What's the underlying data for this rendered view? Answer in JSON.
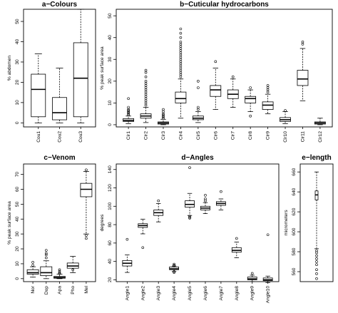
{
  "chart_data": [
    {
      "id": "colours",
      "type": "boxplot",
      "title": "a−Colours",
      "ylabel": "% abdomen",
      "ylim": [
        -2,
        56
      ],
      "yticks": [
        0,
        10,
        20,
        30,
        40,
        50
      ],
      "categories": [
        "Cou1",
        "Cou2",
        "Cou3"
      ],
      "boxes": [
        {
          "min": 0,
          "q1": 3,
          "median": 16.5,
          "q3": 24,
          "max": 34,
          "outliers": []
        },
        {
          "min": 0,
          "q1": 1.5,
          "median": 5,
          "q3": 12.5,
          "max": 27,
          "outliers": []
        },
        {
          "min": 0,
          "q1": 3,
          "median": 22,
          "q3": 39.5,
          "max": 56,
          "outliers": []
        }
      ]
    },
    {
      "id": "cuticular-hydrocarbons",
      "type": "boxplot",
      "title": "b−Cuticular hydrocarbons",
      "ylabel": "% peak surface area",
      "ylim": [
        -1,
        53
      ],
      "yticks": [
        0,
        10,
        20,
        30,
        40,
        50
      ],
      "categories": [
        "Cir1",
        "Cir2",
        "Cir3",
        "Cir4",
        "Cir5",
        "Cir6",
        "Cir7",
        "Cir8",
        "Cir9",
        "Cir10",
        "Cir11",
        "Cir12"
      ],
      "boxes": [
        {
          "min": 0.5,
          "q1": 1.5,
          "median": 2,
          "q3": 2.8,
          "max": 4,
          "outliers": [
            4.5,
            5,
            5.5,
            6,
            6.5,
            7,
            8,
            12
          ]
        },
        {
          "min": 1,
          "q1": 3,
          "median": 4,
          "q3": 5,
          "max": 8,
          "outliers": [
            9,
            10,
            11,
            12,
            13,
            14,
            15,
            16,
            17,
            18,
            19,
            20,
            22,
            24,
            25
          ]
        },
        {
          "min": 0,
          "q1": 0.3,
          "median": 0.8,
          "q3": 1.3,
          "max": 2.5,
          "outliers": [
            3,
            3.5,
            4,
            4.5,
            5,
            6,
            7
          ]
        },
        {
          "min": 3,
          "q1": 10,
          "median": 12,
          "q3": 15,
          "max": 21,
          "outliers": [
            22,
            23,
            24,
            25,
            26,
            27,
            28,
            29,
            30,
            31,
            32,
            33,
            34,
            35,
            36,
            37,
            38,
            40,
            42,
            44
          ]
        },
        {
          "min": 1,
          "q1": 2.3,
          "median": 3,
          "q3": 4,
          "max": 6,
          "outliers": [
            7,
            8,
            17,
            20
          ]
        },
        {
          "min": 7,
          "q1": 13,
          "median": 16,
          "q3": 18,
          "max": 26,
          "outliers": [
            29
          ]
        },
        {
          "min": 8,
          "q1": 12,
          "median": 14,
          "q3": 16,
          "max": 21,
          "outliers": [
            22
          ]
        },
        {
          "min": 6,
          "q1": 10,
          "median": 12,
          "q3": 13,
          "max": 16,
          "outliers": [
            17,
            4
          ]
        },
        {
          "min": 5,
          "q1": 7,
          "median": 9,
          "q3": 10.5,
          "max": 14,
          "outliers": [
            15,
            16,
            17,
            18
          ]
        },
        {
          "min": 0.5,
          "q1": 1.5,
          "median": 2.3,
          "q3": 3.3,
          "max": 6,
          "outliers": [
            6.5
          ]
        },
        {
          "min": 11,
          "q1": 18,
          "median": 21,
          "q3": 25,
          "max": 35,
          "outliers": [
            37,
            38
          ]
        },
        {
          "min": 0,
          "q1": 0.3,
          "median": 0.8,
          "q3": 1.3,
          "max": 3,
          "outliers": []
        }
      ]
    },
    {
      "id": "venom",
      "type": "boxplot",
      "title": "c−Venom",
      "ylabel": "% peak surface area",
      "ylim": [
        -2,
        77
      ],
      "yticks": [
        0,
        10,
        20,
        30,
        40,
        50,
        60,
        70
      ],
      "categories": [
        "Nor",
        "Dop",
        "Apa",
        "Pho",
        "Mel"
      ],
      "boxes": [
        {
          "min": 1,
          "q1": 3,
          "median": 4,
          "q3": 6,
          "max": 8,
          "outliers": [
            9,
            11
          ]
        },
        {
          "min": 0,
          "q1": 2,
          "median": 4,
          "q3": 8,
          "max": 12,
          "outliers": [
            14,
            16,
            17,
            19
          ]
        },
        {
          "min": 0,
          "q1": 0.3,
          "median": 0.8,
          "q3": 1.5,
          "max": 3,
          "outliers": [
            3.5,
            4,
            5,
            6
          ]
        },
        {
          "min": 4,
          "q1": 7,
          "median": 8.5,
          "q3": 10.5,
          "max": 15,
          "outliers": [
            6
          ]
        },
        {
          "min": 30,
          "q1": 55,
          "median": 60,
          "q3": 64,
          "max": 72,
          "outliers": [
            27,
            29,
            73
          ]
        }
      ]
    },
    {
      "id": "angles",
      "type": "boxplot",
      "title": "d−Angles",
      "ylabel": "degrees",
      "ylim": [
        18,
        146
      ],
      "yticks": [
        20,
        40,
        60,
        80,
        100,
        120,
        140
      ],
      "categories": [
        "Angle1",
        "Angle2",
        "Angle3",
        "Angle4",
        "Angle5",
        "Angle6",
        "Angle7",
        "Angle8",
        "Angle9",
        "Angle10"
      ],
      "boxes": [
        {
          "min": 28,
          "q1": 35,
          "median": 38,
          "q3": 41,
          "max": 47,
          "outliers": [
            64
          ]
        },
        {
          "min": 70,
          "q1": 77,
          "median": 79,
          "q3": 81,
          "max": 86,
          "outliers": [
            55
          ]
        },
        {
          "min": 83,
          "q1": 90,
          "median": 93,
          "q3": 96,
          "max": 103,
          "outliers": [
            106
          ]
        },
        {
          "min": 29,
          "q1": 31,
          "median": 32,
          "q3": 34,
          "max": 35,
          "outliers": [
            28,
            29,
            35,
            36,
            37
          ]
        },
        {
          "min": 90,
          "q1": 99,
          "median": 102,
          "q3": 106,
          "max": 114,
          "outliers": [
            87,
            88,
            89,
            142
          ]
        },
        {
          "min": 92,
          "q1": 96,
          "median": 98,
          "q3": 100,
          "max": 104,
          "outliers": [
            106,
            108,
            112
          ]
        },
        {
          "min": 96,
          "q1": 101,
          "median": 103,
          "q3": 105,
          "max": 108,
          "outliers": [
            116
          ]
        },
        {
          "min": 44,
          "q1": 50,
          "median": 52,
          "q3": 55,
          "max": 61,
          "outliers": [
            65
          ]
        },
        {
          "min": 18,
          "q1": 20,
          "median": 21,
          "q3": 23,
          "max": 25,
          "outliers": [
            27
          ]
        },
        {
          "min": 17,
          "q1": 19,
          "median": 20,
          "q3": 22,
          "max": 24,
          "outliers": [
            69
          ]
        }
      ]
    },
    {
      "id": "length",
      "type": "boxplot",
      "title": "e−length",
      "ylabel": "micrometers",
      "ylim": [
        550,
        668
      ],
      "yticks": [
        560,
        580,
        600,
        620,
        640,
        660
      ],
      "categories": [],
      "boxes": [
        {
          "min": 583,
          "q1": 632,
          "median": 637,
          "q3": 641,
          "max": 660,
          "outliers": [
            553,
            558,
            562,
            567,
            570,
            573,
            576,
            579,
            581
          ]
        }
      ]
    }
  ]
}
